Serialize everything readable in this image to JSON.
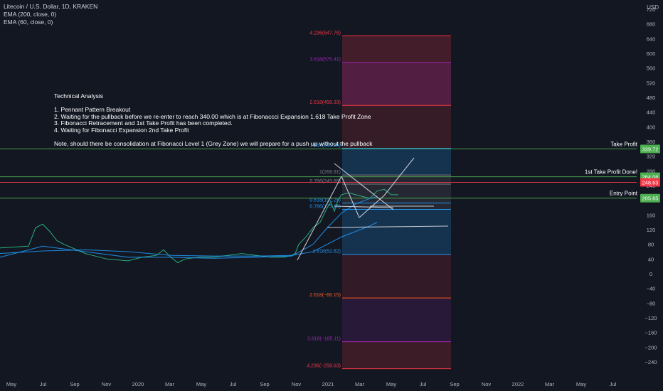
{
  "chart_data": {
    "type": "line",
    "title": "Litecoin / U.S. Dollar, 1D, KRAKEN",
    "indicators": [
      "EMA (200, close, 0)",
      "EMA (60, close, 0)"
    ],
    "currency": "USD",
    "y_axis": {
      "ticks": [
        "760",
        "720",
        "680",
        "640",
        "600",
        "560",
        "520",
        "480",
        "440",
        "400",
        "360",
        "320",
        "280",
        "240",
        "200",
        "160",
        "120",
        "80",
        "40",
        "0",
        "−40",
        "−80",
        "−120",
        "−160",
        "−200",
        "−240"
      ],
      "ylim": [
        -260,
        780
      ]
    },
    "x_axis": {
      "ticks": [
        "May",
        "Jul",
        "Sep",
        "Nov",
        "2020",
        "Mar",
        "May",
        "Jul",
        "Sep",
        "Nov",
        "2021",
        "Mar",
        "May",
        "Jul",
        "Sep",
        "Nov",
        "2022",
        "Mar",
        "May",
        "Jul"
      ]
    },
    "series": [
      {
        "name": "LTC/USD",
        "color": "#2ebd85",
        "x": [
          0,
          40,
          50,
          60,
          70,
          80,
          90,
          120,
          150,
          180,
          200,
          220,
          230,
          240,
          250,
          260,
          280,
          300,
          320,
          340,
          360,
          380,
          400,
          410,
          415,
          420,
          430,
          440,
          450,
          455,
          460,
          465,
          470,
          475,
          480,
          490,
          500,
          510,
          520,
          530,
          540,
          550,
          560
        ],
        "y": [
          70,
          75,
          125,
          135,
          115,
          90,
          80,
          55,
          40,
          35,
          45,
          50,
          65,
          45,
          30,
          40,
          45,
          45,
          50,
          55,
          50,
          45,
          45,
          50,
          55,
          80,
          100,
          125,
          140,
          160,
          180,
          195,
          170,
          200,
          215,
          220,
          215,
          210,
          205,
          225,
          230,
          215,
          215
        ]
      },
      {
        "name": "EMA (200, close, 0)",
        "color": "#2196f3",
        "x": [
          0,
          60,
          120,
          180,
          240,
          300,
          360,
          410,
          440,
          460,
          480,
          500,
          520,
          530
        ],
        "y": [
          55,
          62,
          65,
          60,
          50,
          48,
          48,
          50,
          60,
          80,
          100,
          115,
          130,
          140
        ]
      },
      {
        "name": "EMA (60, close, 0)",
        "color": "#2196f3",
        "x": [
          0,
          60,
          120,
          180,
          240,
          300,
          360,
          410,
          440,
          460,
          480,
          500,
          520,
          530
        ],
        "y": [
          45,
          75,
          60,
          45,
          45,
          42,
          45,
          48,
          80,
          125,
          165,
          190,
          205,
          210
        ]
      }
    ],
    "fib_expansion": [
      {
        "label": "4.236(647.76)",
        "value": 647.76,
        "color": "#f23645"
      },
      {
        "label": "3.618(575.41)",
        "value": 575.41,
        "color": "#9c27b0"
      },
      {
        "label": "2.618(458.33)",
        "value": 458.33,
        "color": "#f23645"
      },
      {
        "label": "1.618(341.26)",
        "value": 341.26,
        "color": "#2196f3"
      },
      {
        "label": "1(268.91)",
        "value": 268.91,
        "color": "#787b86"
      },
      {
        "label": "0.786(243.85)",
        "value": 243.85,
        "color": "#787b86"
      },
      {
        "label": "0.618(192.25)",
        "value": 192.25,
        "color": "#2196f3"
      },
      {
        "label": "0.786(175.25)",
        "value": 175.25,
        "color": "#2196f3"
      },
      {
        "label": "1.618(52.82)",
        "value": 52.82,
        "color": "#2196f3"
      },
      {
        "label": "2.618(−66.15)",
        "value": -66.15,
        "color": "#ff5722"
      },
      {
        "label": "3.618(−185.11)",
        "value": -185.11,
        "color": "#9c27b0"
      },
      {
        "label": "4.236(−258.63)",
        "value": -258.63,
        "color": "#f23645"
      }
    ],
    "horizontal_levels": [
      {
        "name": "Take Profit",
        "value": 339.72,
        "label": "339.72",
        "bg": "#4caf50"
      },
      {
        "name": "1st Take Profit Done!",
        "value": 264.06,
        "label": "264.06",
        "bg": "#4caf50"
      },
      {
        "name": "",
        "value": 248.63,
        "label": "248.63",
        "bg": "#f23645"
      },
      {
        "name": "Entry Point",
        "value": 205.65,
        "label": "205.65",
        "bg": "#4caf50"
      }
    ]
  },
  "analysis": {
    "lines": [
      "Technical Analysis",
      "",
      "1. Pennant Pattern Breakout",
      "2. Waiting for the pullback before we re-enter to reach 340.00 which is at Fibonaccci Expansion 1.618 Take Profit Zone",
      "3. Fibonacci Retracement and 1st Take Profit has been completed.",
      "4. Waiting for Fibonacci Expansion 2nd Take Profit",
      "",
      "Note, should there be consolidation at Fibonacci Level 1 (Grey Zone) we will prepare for a push up without the pullback"
    ]
  },
  "colors": {
    "background": "#131722",
    "text": "#b2b5be",
    "level_line": "#4caf50"
  }
}
